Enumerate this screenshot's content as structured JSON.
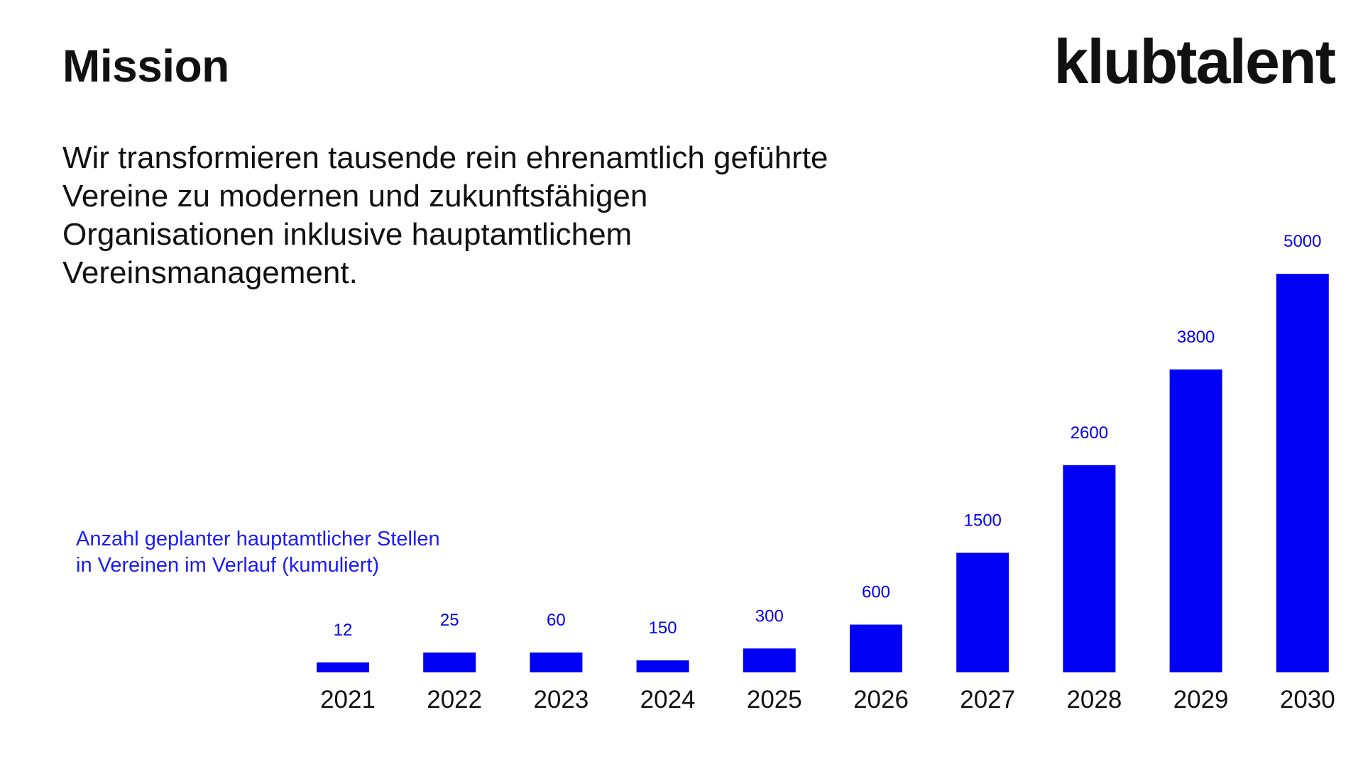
{
  "slide": {
    "title": "Mission",
    "logo_text": "klubtalent",
    "mission_text": "Wir transformieren tausende rein ehrenamtlich geführte Vereine zu modernen und zukunftsfähigen Organisationen inklusive hauptamtlichem Vereinsmanagement.",
    "colors": {
      "text": "#111111",
      "accent": "#0000f5"
    }
  },
  "chart_data": {
    "type": "bar",
    "title": "Anzahl geplanter hauptamtlicher Stellen in Vereinen im Verlauf (kumuliert)",
    "title_lines": [
      "Anzahl geplanter hauptamtlicher Stellen",
      "in Vereinen im Verlauf (kumuliert)"
    ],
    "xlabel": "",
    "ylabel": "",
    "categories": [
      "2021",
      "2022",
      "2023",
      "2024",
      "2025",
      "2026",
      "2027",
      "2028",
      "2029",
      "2030"
    ],
    "values": [
      12,
      25,
      60,
      150,
      300,
      600,
      1500,
      2600,
      3800,
      5000
    ],
    "data_labels": [
      "12",
      "25",
      "60",
      "150",
      "300",
      "600",
      "1500",
      "2600",
      "3800",
      "5000"
    ],
    "bar_color": "#0000f5",
    "grid": false,
    "legend": "none"
  }
}
